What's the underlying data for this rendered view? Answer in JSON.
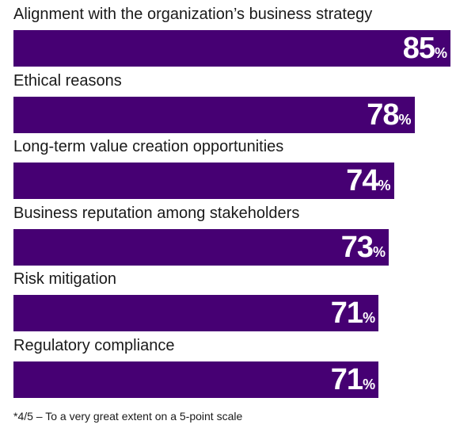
{
  "chart_data": {
    "type": "bar",
    "orientation": "horizontal",
    "categories": [
      "Alignment with the organization’s business strategy",
      "Ethical reasons",
      "Long-term value creation opportunities",
      "Business reputation among stakeholders",
      "Risk mitigation",
      "Regulatory compliance"
    ],
    "values": [
      85,
      78,
      74,
      73,
      71,
      71
    ],
    "unit": "%",
    "xlim": [
      0,
      85
    ],
    "bar_color": "#460073",
    "label_color": "#ffffff",
    "title": "",
    "xlabel": "",
    "ylabel": "",
    "grid": false,
    "legend": "none"
  },
  "footnote": "*4/5 – To a very great extent on a 5-point scale"
}
